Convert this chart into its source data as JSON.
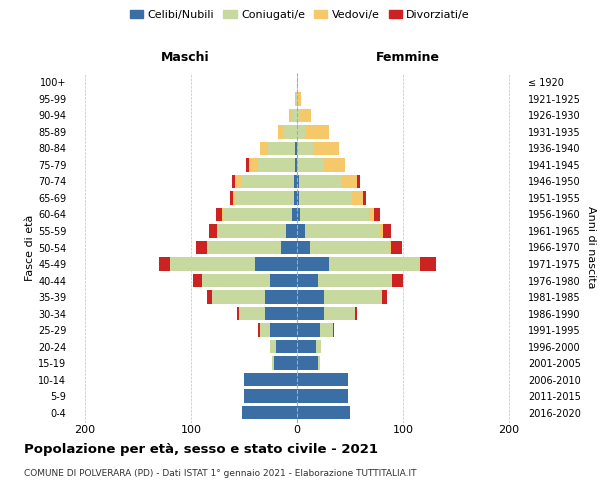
{
  "age_groups": [
    "0-4",
    "5-9",
    "10-14",
    "15-19",
    "20-24",
    "25-29",
    "30-34",
    "35-39",
    "40-44",
    "45-49",
    "50-54",
    "55-59",
    "60-64",
    "65-69",
    "70-74",
    "75-79",
    "80-84",
    "85-89",
    "90-94",
    "95-99",
    "100+"
  ],
  "birth_years": [
    "2016-2020",
    "2011-2015",
    "2006-2010",
    "2001-2005",
    "1996-2000",
    "1991-1995",
    "1986-1990",
    "1981-1985",
    "1976-1980",
    "1971-1975",
    "1966-1970",
    "1961-1965",
    "1956-1960",
    "1951-1955",
    "1946-1950",
    "1941-1945",
    "1936-1940",
    "1931-1935",
    "1926-1930",
    "1921-1925",
    "≤ 1920"
  ],
  "male": {
    "celibi": [
      52,
      50,
      50,
      22,
      20,
      25,
      30,
      30,
      25,
      40,
      15,
      10,
      5,
      3,
      3,
      2,
      2,
      0,
      0,
      0,
      0
    ],
    "coniugati": [
      0,
      0,
      0,
      2,
      5,
      10,
      25,
      50,
      65,
      80,
      70,
      65,
      65,
      55,
      50,
      35,
      25,
      13,
      5,
      1,
      0
    ],
    "vedovi": [
      0,
      0,
      0,
      0,
      0,
      0,
      0,
      0,
      0,
      0,
      0,
      0,
      1,
      2,
      5,
      8,
      8,
      5,
      3,
      1,
      0
    ],
    "divorziati": [
      0,
      0,
      0,
      0,
      0,
      2,
      2,
      5,
      8,
      10,
      10,
      8,
      5,
      3,
      3,
      3,
      0,
      0,
      0,
      0,
      0
    ]
  },
  "female": {
    "nubili": [
      50,
      48,
      48,
      20,
      18,
      22,
      25,
      25,
      20,
      30,
      12,
      8,
      3,
      2,
      2,
      0,
      0,
      0,
      0,
      0,
      0
    ],
    "coniugate": [
      0,
      0,
      0,
      2,
      5,
      12,
      30,
      55,
      70,
      85,
      75,
      70,
      65,
      50,
      40,
      25,
      15,
      8,
      3,
      1,
      0
    ],
    "vedove": [
      0,
      0,
      0,
      0,
      0,
      0,
      0,
      0,
      0,
      1,
      2,
      3,
      5,
      10,
      15,
      20,
      25,
      22,
      10,
      3,
      1
    ],
    "divorziate": [
      0,
      0,
      0,
      0,
      0,
      1,
      2,
      5,
      10,
      15,
      10,
      8,
      5,
      3,
      2,
      0,
      0,
      0,
      0,
      0,
      0
    ]
  },
  "colors": {
    "celibi": "#3a6ea5",
    "coniugati": "#c8d9a0",
    "vedovi": "#f5c96a",
    "divorziati": "#cc2222"
  },
  "xlim": [
    -215,
    215
  ],
  "xticks": [
    -200,
    -100,
    0,
    100,
    200
  ],
  "xticklabels": [
    "200",
    "100",
    "0",
    "100",
    "200"
  ],
  "title": "Popolazione per età, sesso e stato civile - 2021",
  "subtitle": "COMUNE DI POLVERARA (PD) - Dati ISTAT 1° gennaio 2021 - Elaborazione TUTTITALIA.IT",
  "ylabel": "Fasce di età",
  "ylabel_right": "Anni di nascita",
  "maschi_label": "Maschi",
  "femmine_label": "Femmine",
  "legend_labels": [
    "Celibi/Nubili",
    "Coniugati/e",
    "Vedovi/e",
    "Divorziati/e"
  ],
  "background_color": "#ffffff",
  "bar_height": 0.82
}
